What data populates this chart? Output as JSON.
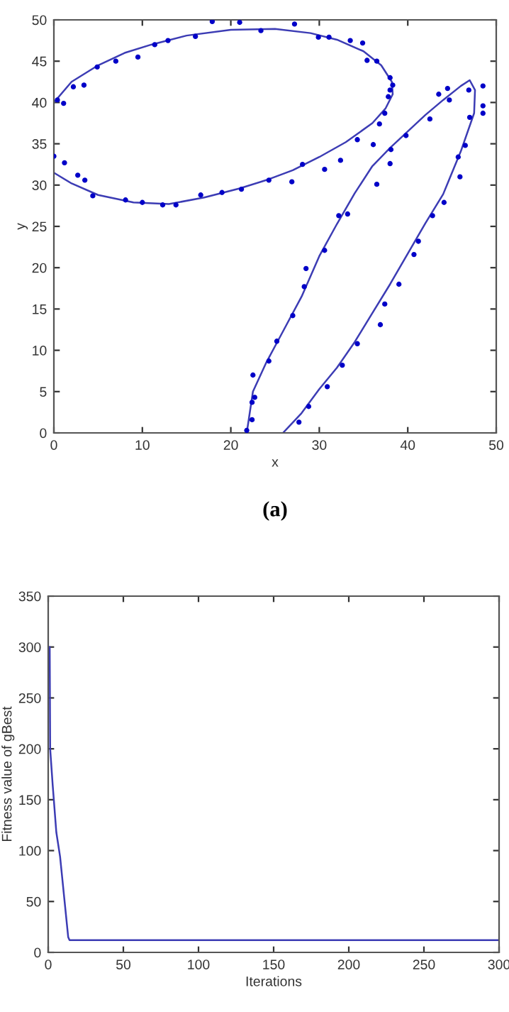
{
  "chart_data": [
    {
      "type": "scatter",
      "xlabel": "x",
      "ylabel": "y",
      "annotations": [
        "(a)"
      ],
      "xlim": [
        0,
        50
      ],
      "ylim": [
        0,
        50
      ],
      "xticks": [
        0,
        10,
        20,
        30,
        40,
        50
      ],
      "yticks": [
        0,
        5,
        10,
        15,
        20,
        25,
        30,
        35,
        40,
        45,
        50
      ],
      "grid": false,
      "legend": false,
      "series": [
        {
          "color": "#0000c8",
          "marker": "circle",
          "x": [
            0,
            0.4,
            1.1,
            1.2,
            2.2,
            2.7,
            3.4,
            3.5,
            4.4,
            4.9,
            7.0,
            8.1,
            9.5,
            10.0,
            11.4,
            12.3,
            12.9,
            13.8,
            16.0,
            16.6,
            17.9,
            19.0,
            21.0,
            21.2,
            27.2,
            23.4,
            29.9,
            31.1,
            33.5,
            34.9,
            35.4,
            36.5,
            38.0,
            38.3,
            38.0,
            37.8,
            37.4,
            36.8,
            34.3,
            36.1,
            32.4,
            30.6,
            28.1,
            26.9,
            24.3,
            46.9,
            48.5,
            44.5,
            43.5,
            44.7,
            48.5,
            48.5,
            47.0,
            42.5,
            39.8,
            38.1,
            38.0,
            36.5,
            46.5,
            45.7,
            45.9,
            44.1,
            42.8,
            41.2,
            40.7,
            39.0,
            37.4,
            36.9,
            34.3,
            32.6,
            30.9,
            28.8,
            27.7,
            33.2,
            32.2,
            30.6,
            28.5,
            28.3,
            27.0,
            25.2,
            24.3,
            22.5,
            22.4,
            22.7,
            22.4,
            21.8
          ],
          "values": [
            33.5,
            40.3,
            39.9,
            32.7,
            41.9,
            31.2,
            42.1,
            30.6,
            28.7,
            44.3,
            45.0,
            28.2,
            45.5,
            27.9,
            47.0,
            27.6,
            47.5,
            27.6,
            48.0,
            28.8,
            49.8,
            29.1,
            49.7,
            29.5,
            49.5,
            48.7,
            47.9,
            47.9,
            47.5,
            47.2,
            45.1,
            45.0,
            43.0,
            42.1,
            41.5,
            40.7,
            38.7,
            37.4,
            35.5,
            34.9,
            33.0,
            31.9,
            32.5,
            30.4,
            30.6,
            41.5,
            42.0,
            41.7,
            41.0,
            40.3,
            39.6,
            38.7,
            38.2,
            38.0,
            36.0,
            34.3,
            32.6,
            30.1,
            34.8,
            33.4,
            31.0,
            27.9,
            26.3,
            23.2,
            21.6,
            18.0,
            15.6,
            13.1,
            10.8,
            8.2,
            5.6,
            3.2,
            1.3,
            26.5,
            26.3,
            22.1,
            19.9,
            17.7,
            14.2,
            11.1,
            8.7,
            7.0,
            3.7,
            4.3,
            1.6,
            0.3
          ]
        },
        {
          "type": "line",
          "color": "#3c3cb4",
          "marker": "none",
          "line_style": "solid",
          "x": [
            0,
            2,
            5,
            8,
            11,
            15,
            20,
            25,
            29,
            32,
            35,
            37,
            38.2,
            38.3,
            37.5,
            36,
            33,
            30,
            27,
            24,
            21,
            17,
            13,
            9,
            5,
            2,
            0
          ],
          "values": [
            40.0,
            42.5,
            44.5,
            46.0,
            47.0,
            48.1,
            48.8,
            48.9,
            48.4,
            47.6,
            46.2,
            44.5,
            42.5,
            41.0,
            39.3,
            37.5,
            35.2,
            33.4,
            31.8,
            30.6,
            29.6,
            28.5,
            27.7,
            27.9,
            28.8,
            30.2,
            31.5
          ]
        },
        {
          "type": "line",
          "color": "#3c3cb4",
          "marker": "none",
          "line_style": "solid",
          "x": [
            21.8,
            22.5,
            24,
            26,
            28,
            30,
            32,
            34,
            36,
            38,
            40,
            42,
            44,
            46,
            47,
            47.6,
            47.5,
            46,
            44,
            42,
            40,
            38,
            36,
            34,
            32,
            30,
            28,
            25.9
          ],
          "values": [
            0,
            5,
            8.5,
            12.5,
            16.5,
            21.4,
            25.3,
            29,
            32.3,
            34.5,
            36.5,
            38.5,
            40.3,
            42,
            42.7,
            41.5,
            38.7,
            34.1,
            28.9,
            25.4,
            21.7,
            18,
            14.5,
            11,
            7.9,
            5.3,
            2.4,
            0
          ]
        }
      ]
    },
    {
      "type": "line",
      "xlabel": "Iterations",
      "ylabel": "Fitness value of gBest",
      "xlim": [
        0,
        300
      ],
      "ylim": [
        0,
        350
      ],
      "xticks": [
        0,
        50,
        100,
        150,
        200,
        250,
        300
      ],
      "yticks": [
        0,
        50,
        100,
        150,
        200,
        250,
        300,
        350
      ],
      "grid": false,
      "legend": false,
      "marker": "none",
      "line_style": "solid",
      "series": [
        {
          "color": "#3c3cb4",
          "x": [
            1,
            1.3,
            3,
            5.4,
            7.9,
            13.3,
            14.2,
            300
          ],
          "values": [
            300,
            200,
            164,
            118,
            94,
            15,
            12,
            12
          ]
        }
      ]
    }
  ]
}
